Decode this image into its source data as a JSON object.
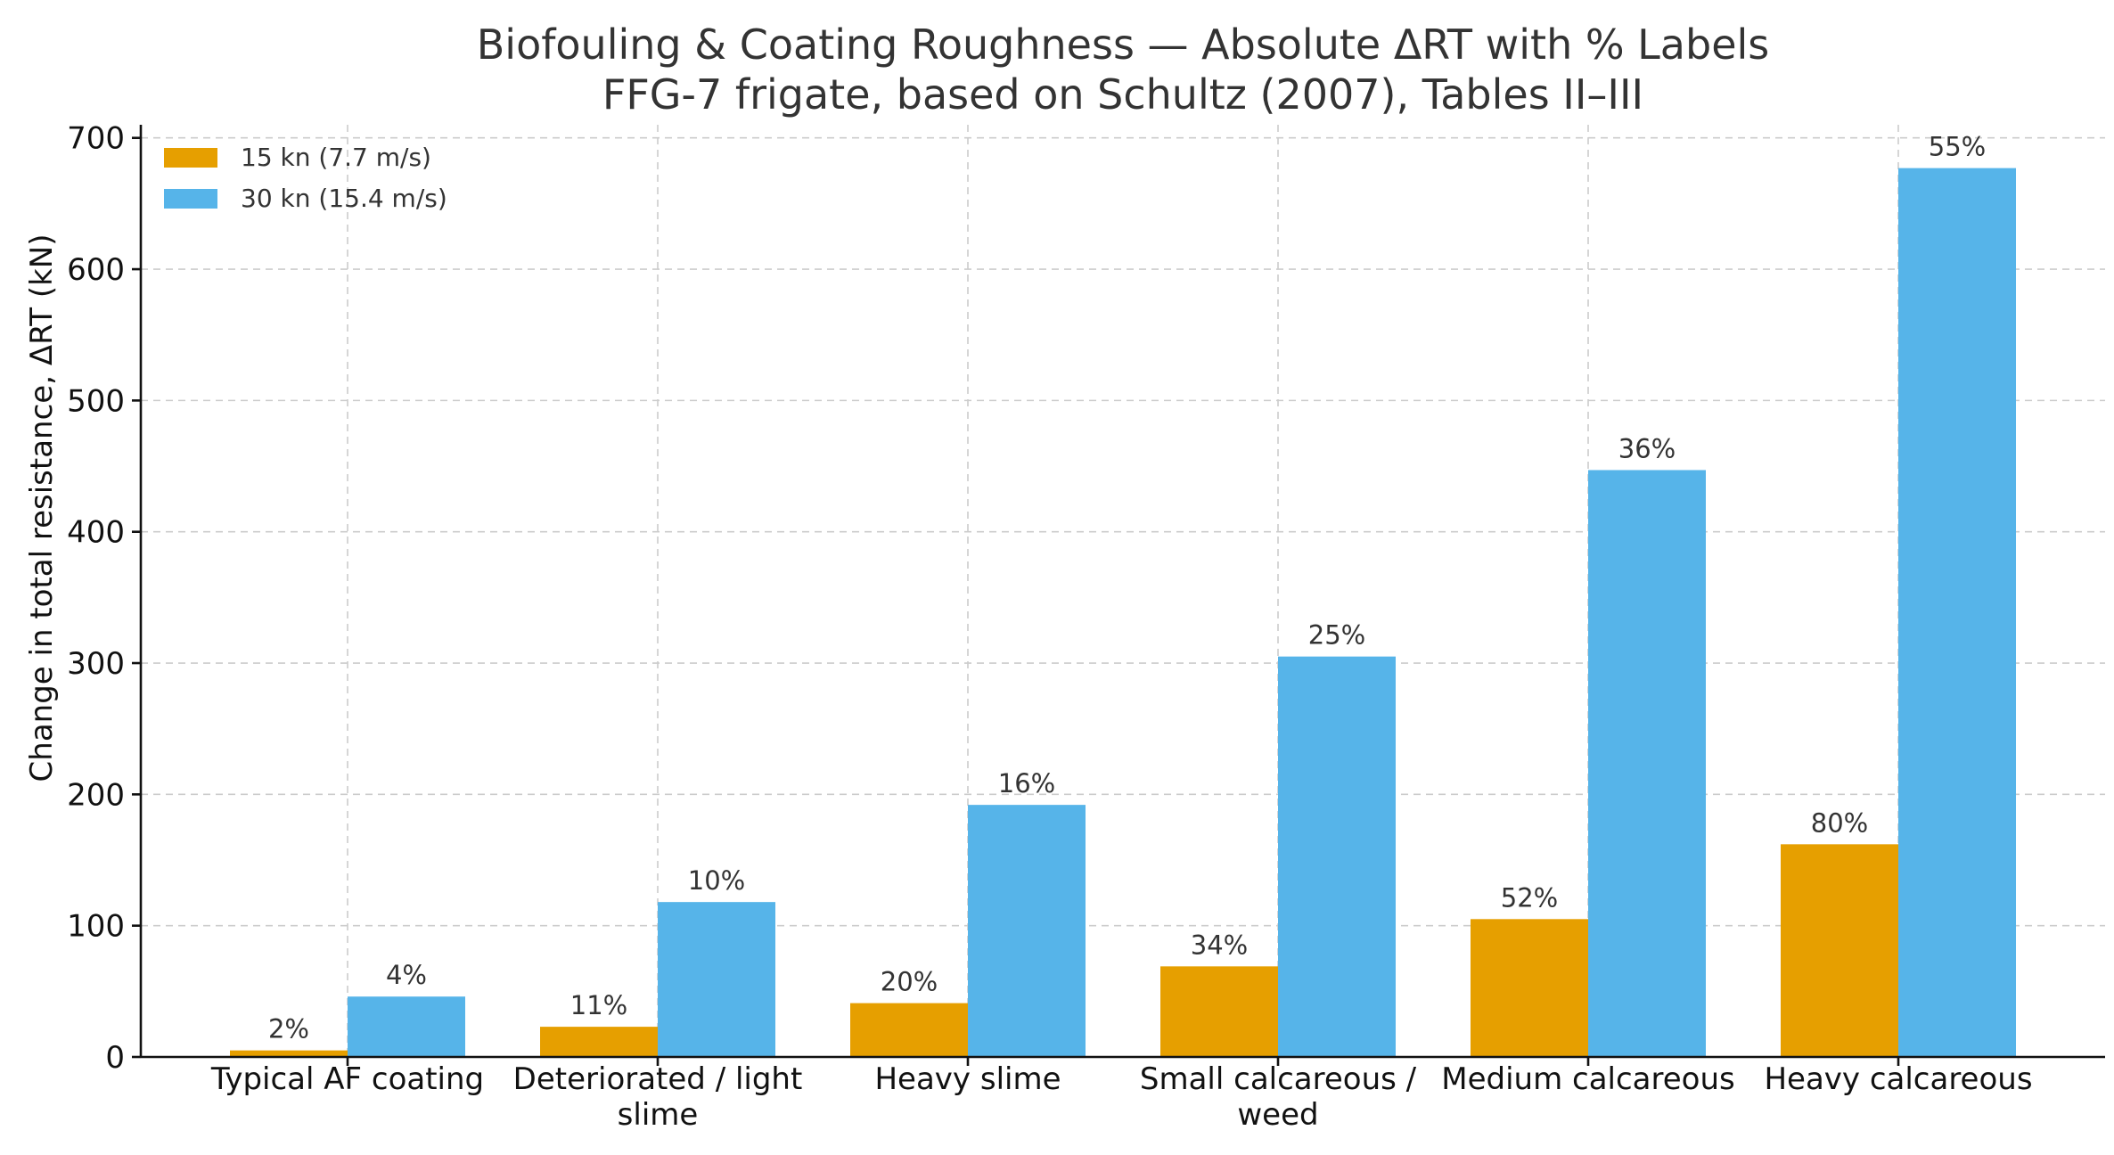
{
  "chart_data": {
    "type": "bar",
    "title": "Biofouling & Coating Roughness — Absolute ΔRT with % Labels",
    "subtitle": "FFG-7 frigate, based on Schultz (2007), Tables II–III",
    "xlabel": "",
    "ylabel": "Change in total resistance, ΔRT (kN)",
    "ylim": [
      0,
      710
    ],
    "yticks": [
      0,
      100,
      200,
      300,
      400,
      500,
      600,
      700
    ],
    "grid": true,
    "legend_position": "top-left",
    "categories": [
      [
        "Typical AF coating"
      ],
      [
        "Deteriorated / light",
        "slime"
      ],
      [
        "Heavy slime"
      ],
      [
        "Small calcareous /",
        "weed"
      ],
      [
        "Medium calcareous"
      ],
      [
        "Heavy calcareous"
      ]
    ],
    "series": [
      {
        "name": "15 kn (7.7 m/s)",
        "color": "#E69F00",
        "values": [
          5,
          23,
          41,
          69,
          105,
          162
        ],
        "labels": [
          "2%",
          "11%",
          "20%",
          "34%",
          "52%",
          "80%"
        ]
      },
      {
        "name": "30 kn (15.4 m/s)",
        "color": "#56B4E9",
        "values": [
          46,
          118,
          192,
          305,
          447,
          677
        ],
        "labels": [
          "4%",
          "10%",
          "16%",
          "25%",
          "36%",
          "55%"
        ]
      }
    ]
  }
}
